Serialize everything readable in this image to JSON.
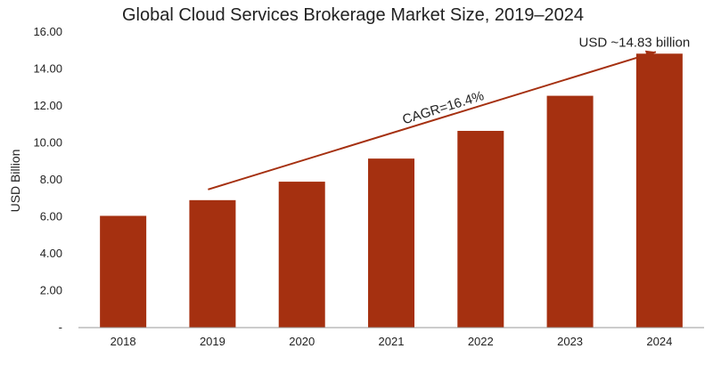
{
  "chart_data": {
    "type": "bar",
    "title": "Global Cloud Services Brokerage Market Size, 2019–2024",
    "xlabel": "",
    "ylabel": "USD Billion",
    "categories": [
      "2018",
      "2019",
      "2020",
      "2021",
      "2022",
      "2023",
      "2024"
    ],
    "values": [
      6.05,
      6.9,
      7.9,
      9.15,
      10.65,
      12.55,
      14.83
    ],
    "ylim": [
      0,
      16
    ],
    "y_ticks": [
      "-",
      "2.00",
      "4.00",
      "6.00",
      "8.00",
      "10.00",
      "12.00",
      "14.00",
      "16.00"
    ],
    "grid": false,
    "bar_color": "#a53010",
    "arrow_color": "#a53010",
    "annotations": {
      "cagr": "CAGR=16.4%",
      "final_value": "USD ~14.83 billion"
    }
  }
}
